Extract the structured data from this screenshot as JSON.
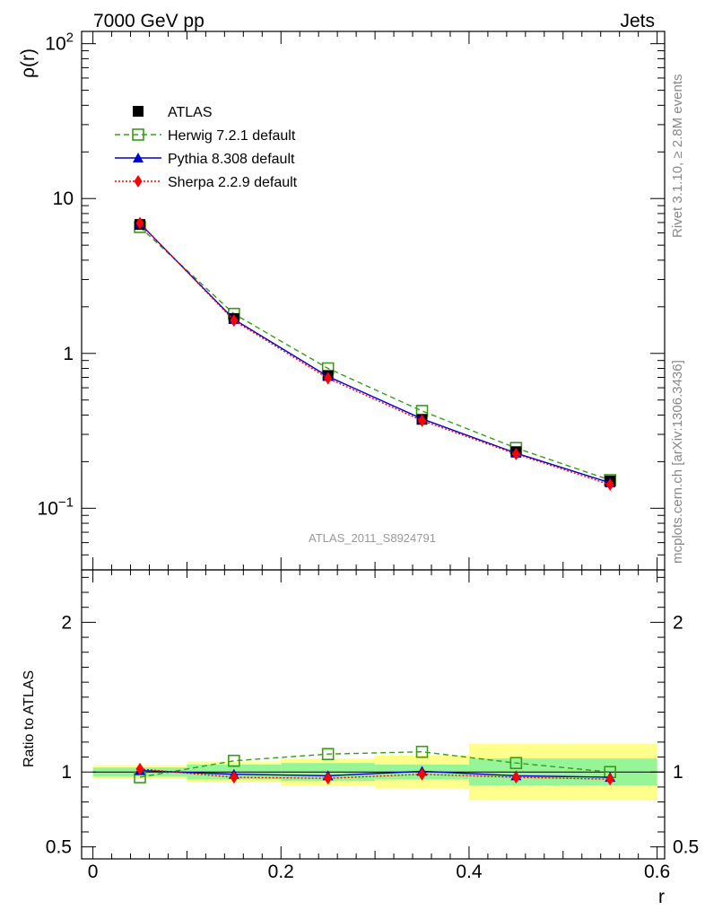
{
  "header": {
    "left": "7000 GeV pp",
    "right": "Jets"
  },
  "side_text": {
    "rivet": "Rivet 3.1.10, ≥ 2.8M events",
    "mcplots": "mcplots.cern.ch [arXiv:1306.3436]"
  },
  "watermark": "ATLAS_2011_S8924791",
  "colors": {
    "atlas": "#000000",
    "herwig": "#3a9a1a",
    "pythia": "#0000cc",
    "sherpa": "#ff0000",
    "band_outer": "#ffff8c",
    "band_inner": "#96f596"
  },
  "chart_data": [
    {
      "type": "line",
      "title": "",
      "xlabel": "r",
      "ylabel": "ρ(r)",
      "yscale": "log",
      "xlim": [
        -0.012,
        0.608
      ],
      "ylim": [
        0.04,
        120
      ],
      "yticklabels": [
        {
          "value": 0.1,
          "label": "10",
          "sup": "−1"
        },
        {
          "value": 1,
          "label": "1",
          "sup": ""
        },
        {
          "value": 10,
          "label": "10",
          "sup": ""
        },
        {
          "value": 100,
          "label": "10",
          "sup": "2"
        }
      ],
      "x": [
        0.05,
        0.15,
        0.25,
        0.35,
        0.45,
        0.55
      ],
      "series": [
        {
          "name": "ATLAS",
          "values": [
            6.8,
            1.68,
            0.72,
            0.375,
            0.232,
            0.15
          ]
        },
        {
          "name": "Herwig 7.2.1 default",
          "values": [
            6.55,
            1.8,
            0.8,
            0.425,
            0.245,
            0.152
          ]
        },
        {
          "name": "Pythia 8.308 default",
          "values": [
            6.9,
            1.66,
            0.71,
            0.378,
            0.227,
            0.146
          ]
        },
        {
          "name": "Sherpa 2.2.9 default",
          "values": [
            6.95,
            1.63,
            0.69,
            0.368,
            0.224,
            0.142
          ]
        }
      ],
      "legend": [
        "ATLAS",
        "Herwig 7.2.1 default",
        "Pythia 8.308 default",
        "Sherpa 2.2.9 default"
      ],
      "legend_position": "top-left"
    },
    {
      "type": "line",
      "title": "",
      "xlabel": "r",
      "ylabel": "Ratio to ATLAS",
      "xlim": [
        -0.012,
        0.608
      ],
      "ylim": [
        0.42,
        2.35
      ],
      "xticklabels": [
        "0",
        "0.2",
        "0.4",
        "0.6"
      ],
      "xticks": [
        0,
        0.2,
        0.4,
        0.6
      ],
      "yticklabels": [
        "0.5",
        "1",
        "2"
      ],
      "yticks": [
        0.5,
        1,
        2
      ],
      "bins": [
        [
          0.0,
          0.1
        ],
        [
          0.1,
          0.2
        ],
        [
          0.2,
          0.3
        ],
        [
          0.3,
          0.4
        ],
        [
          0.4,
          0.5
        ],
        [
          0.5,
          0.6
        ]
      ],
      "band_outer": [
        [
          0.955,
          1.045
        ],
        [
          0.93,
          1.07
        ],
        [
          0.91,
          1.09
        ],
        [
          0.89,
          1.11
        ],
        [
          0.81,
          1.19
        ],
        [
          0.81,
          1.19
        ]
      ],
      "band_inner": [
        [
          0.97,
          1.03
        ],
        [
          0.95,
          1.05
        ],
        [
          0.94,
          1.06
        ],
        [
          0.95,
          1.05
        ],
        [
          0.91,
          1.09
        ],
        [
          0.91,
          1.09
        ]
      ],
      "x": [
        0.05,
        0.15,
        0.25,
        0.35,
        0.45,
        0.55
      ],
      "series": [
        {
          "name": "Herwig 7.2.1 default",
          "values": [
            0.965,
            1.075,
            1.12,
            1.135,
            1.06,
            1.0
          ]
        },
        {
          "name": "Pythia 8.308 default",
          "values": [
            1.01,
            0.985,
            0.975,
            1.005,
            0.975,
            0.965
          ]
        },
        {
          "name": "Sherpa 2.2.9 default",
          "values": [
            1.02,
            0.965,
            0.958,
            0.985,
            0.965,
            0.952
          ]
        }
      ]
    }
  ]
}
